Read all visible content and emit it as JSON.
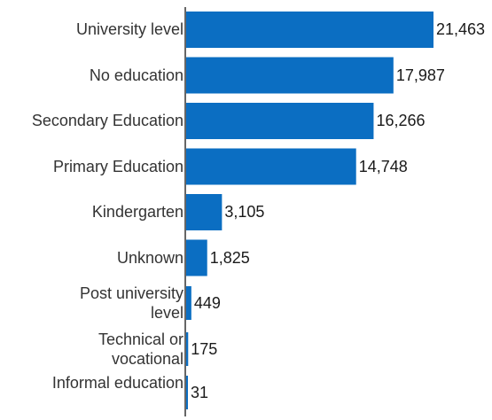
{
  "colors": {
    "bar": "#0b6ec2",
    "axis": "#333333",
    "text": "#333333"
  },
  "chart_data": {
    "type": "bar",
    "orientation": "horizontal",
    "title": "",
    "xlabel": "",
    "ylabel": "",
    "categories": [
      "University level",
      "No education",
      "Secondary Education",
      "Primary Education",
      "Kindergarten",
      "Unknown",
      "Post university level",
      "Technical or vocational",
      "Informal education"
    ],
    "values": [
      21463,
      17987,
      16266,
      14748,
      3105,
      1825,
      449,
      175,
      31
    ],
    "value_labels": [
      "21,463",
      "17,987",
      "16,266",
      "14,748",
      "3,105",
      "1,825",
      "449",
      "175",
      "31"
    ],
    "xlim": [
      0,
      21463
    ],
    "grid": false,
    "legend": "none"
  }
}
